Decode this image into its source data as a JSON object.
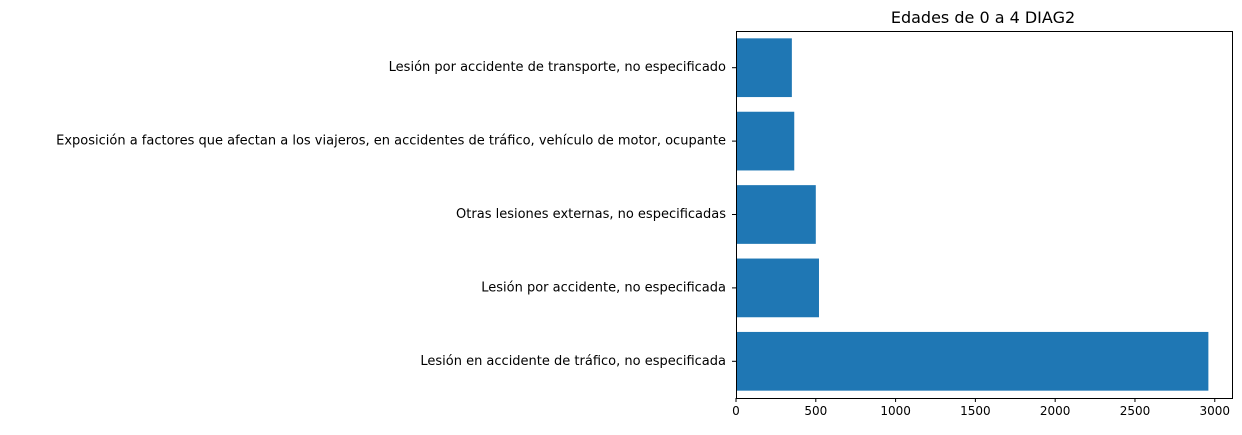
{
  "chart_data": {
    "type": "bar",
    "orientation": "horizontal",
    "title": "Edades de 0 a 4 DIAG2",
    "xlabel": "",
    "ylabel": "",
    "categories": [
      "Lesión en accidente de tráfico, no especificada",
      "Lesión por accidente, no especificada",
      "Otras lesiones externas, no especificadas",
      "Exposición a factores que afectan a los viajeros, en accidentes de tráfico, vehículo de motor, ocupante",
      "Lesión por accidente de transporte, no especificado"
    ],
    "values": [
      2960,
      520,
      500,
      365,
      350
    ],
    "xlim": [
      0,
      3108
    ],
    "xticks": [
      0,
      500,
      1000,
      1500,
      2000,
      2500,
      3000
    ],
    "grid": false,
    "legend": false,
    "bar_color": "#1f77b4"
  }
}
